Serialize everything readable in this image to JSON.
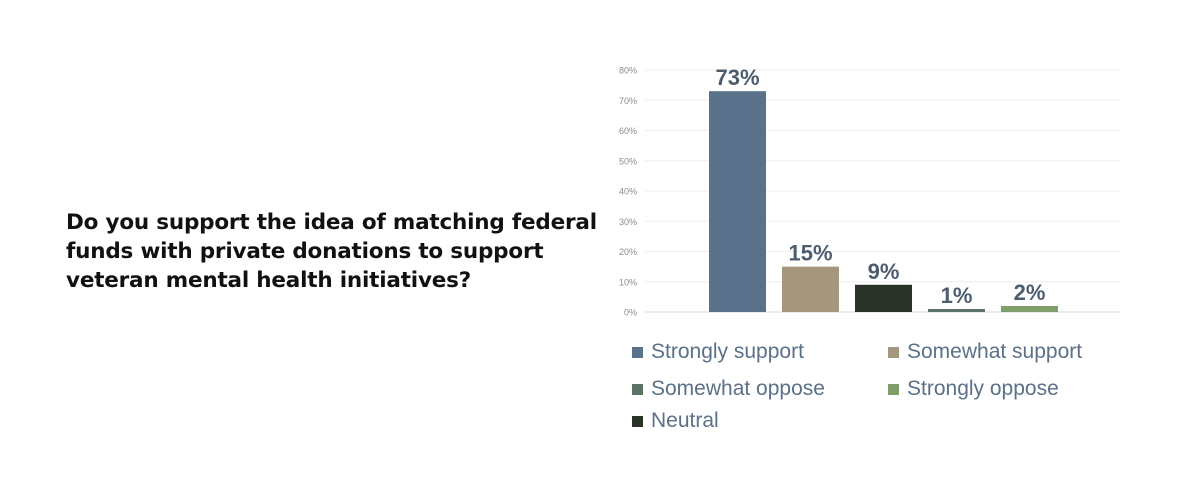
{
  "question": "Do you support the idea of matching federal funds with private donations to support veteran mental health initiatives?",
  "chart_data": {
    "type": "bar",
    "categories": [
      "Strongly support",
      "Somewhat support",
      "Neutral",
      "Somewhat oppose",
      "Strongly oppose"
    ],
    "values": [
      73,
      15,
      9,
      1,
      2
    ],
    "data_labels": [
      "73%",
      "15%",
      "9%",
      "1%",
      "2%"
    ],
    "colors": [
      "#5a728b",
      "#a4977e",
      "#2b3329",
      "#5c7266",
      "#7f9e69"
    ],
    "ylim": [
      0,
      80
    ],
    "yticks": [
      0,
      10,
      20,
      30,
      40,
      50,
      60,
      70,
      80
    ],
    "ytick_labels": [
      "0%",
      "10%",
      "20%",
      "30%",
      "40%",
      "50%",
      "60%",
      "70%",
      "80%"
    ],
    "grid": true,
    "legend": {
      "placement": "bottom",
      "entries": [
        {
          "label": "Strongly support",
          "color": "#5a728b"
        },
        {
          "label": "Somewhat support",
          "color": "#a4977e"
        },
        {
          "label": "Somewhat oppose",
          "color": "#5c7266"
        },
        {
          "label": "Strongly oppose",
          "color": "#7f9e69"
        },
        {
          "label": "Neutral",
          "color": "#2b3329"
        }
      ]
    }
  }
}
